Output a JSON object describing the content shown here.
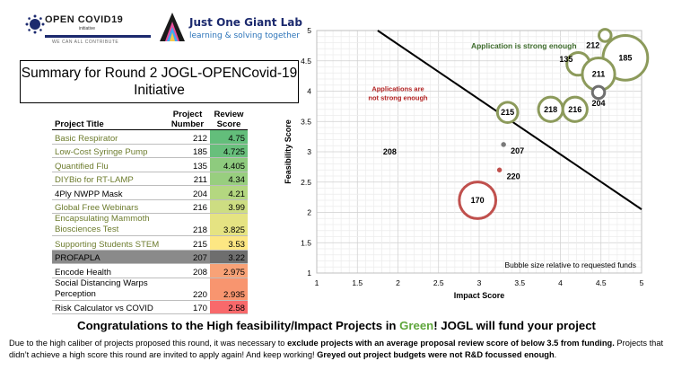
{
  "logos": {
    "opencovid": {
      "title": "OPEN COVID19",
      "sub": "initiative",
      "tagline": "WE CAN ALL CONTRIBUTE"
    },
    "jogl": {
      "name": "Just One Giant Lab",
      "tagline": "learning & solving together"
    }
  },
  "summary_title": "Summary for Round 2 JOGL-OPENCovid-19 Initiative",
  "table": {
    "headers": {
      "title": "Project Title",
      "number": "Project Number",
      "score": "Review Score"
    },
    "rows": [
      {
        "title": "Basic Respirator",
        "number": "212",
        "score": "4.75",
        "color": "#63be7b",
        "title_color": "green"
      },
      {
        "title": "Low-Cost Syringe Pump",
        "number": "185",
        "score": "4.725",
        "color": "#68bf7c",
        "title_color": "green"
      },
      {
        "title": "Quantified Flu",
        "number": "135",
        "score": "4.405",
        "color": "#8ecb7e",
        "title_color": "green"
      },
      {
        "title": "DIYBio for RT-LAMP",
        "number": "211",
        "score": "4.34",
        "color": "#98ce7f",
        "title_color": "green"
      },
      {
        "title": "4Ply NWPP Mask",
        "number": "204",
        "score": "4.21",
        "color": "#b4d780",
        "title_color": "black"
      },
      {
        "title": "Global Free Webinars",
        "number": "216",
        "score": "3.99",
        "color": "#cddd82",
        "title_color": "green"
      },
      {
        "title": "Encapsulating Mammoth Biosciences Test",
        "number": "218",
        "score": "3.825",
        "color": "#e5e382",
        "title_color": "green"
      },
      {
        "title": "Supporting Students STEM",
        "number": "215",
        "score": "3.53",
        "color": "#fde783",
        "title_color": "green"
      },
      {
        "title": "PROFAPLA",
        "number": "207",
        "score": "3.22",
        "color": "#6e6e6e",
        "title_color": "grey"
      },
      {
        "title": "Encode Health",
        "number": "208",
        "score": "2.975",
        "color": "#f8a277",
        "title_color": "black"
      },
      {
        "title": "Social Distancing Warps Perception",
        "number": "220",
        "score": "2.935",
        "color": "#f8956f",
        "title_color": "black"
      },
      {
        "title": "Risk Calculator vs COVID",
        "number": "170",
        "score": "2.58",
        "color": "#f8696b",
        "title_color": "black"
      }
    ]
  },
  "chart_data": {
    "type": "scatter",
    "xlabel": "Impact Score",
    "ylabel": "Feasibility Score",
    "xlim": [
      1,
      5
    ],
    "ylim": [
      1,
      5
    ],
    "xticks": [
      "1",
      "1.5",
      "2",
      "2.5",
      "3",
      "3.5",
      "4",
      "4.5",
      "5"
    ],
    "yticks": [
      "1",
      "1.5",
      "2",
      "2.5",
      "3",
      "3.5",
      "4",
      "4.5",
      "5"
    ],
    "grid": true,
    "threshold_line": [
      [
        1.75,
        5
      ],
      [
        5,
        2.05
      ]
    ],
    "bubbles": [
      {
        "label": "212",
        "x": 4.55,
        "y": 4.92,
        "size": 0.15,
        "color": "#8c9a5b"
      },
      {
        "label": "185",
        "x": 4.8,
        "y": 4.55,
        "size": 0.55,
        "color": "#8c9a5b"
      },
      {
        "label": "135",
        "x": 4.22,
        "y": 4.45,
        "size": 0.28,
        "color": "#8c9a5b"
      },
      {
        "label": "211",
        "x": 4.47,
        "y": 4.28,
        "size": 0.4,
        "color": "#8c9a5b"
      },
      {
        "label": "204",
        "x": 4.47,
        "y": 3.98,
        "size": 0.15,
        "color": "#6f6f6f"
      },
      {
        "label": "218",
        "x": 3.88,
        "y": 3.7,
        "size": 0.3,
        "color": "#8c9a5b"
      },
      {
        "label": "216",
        "x": 4.18,
        "y": 3.7,
        "size": 0.3,
        "color": "#8c9a5b"
      },
      {
        "label": "215",
        "x": 3.35,
        "y": 3.65,
        "size": 0.25,
        "color": "#8c9a5b"
      },
      {
        "label": "207",
        "x": 3.3,
        "y": 3.12,
        "size": 0.05,
        "color": "#7a7a7a"
      },
      {
        "label": "220",
        "x": 3.25,
        "y": 2.7,
        "size": 0.04,
        "color": "#c0504d"
      },
      {
        "label": "208",
        "x": 1.9,
        "y": 3.0,
        "size": 0,
        "color": "#000000"
      },
      {
        "label": "170",
        "x": 2.98,
        "y": 2.2,
        "size": 0.45,
        "color": "#c0504d"
      }
    ],
    "annotations": {
      "strong": "Application is strong enough",
      "not_strong_1": "Applications are",
      "not_strong_2": "not strong enough",
      "bubble_note": "Bubble size relative to requested funds"
    }
  },
  "footer": {
    "headline_a": "Congratulations to the High feasibility/Impact Projects in ",
    "headline_green": "Green",
    "headline_b": "! JOGL will fund your project",
    "body_1": "Due to the high caliber of projects proposed this round, it was necessary to ",
    "body_bold_1": "exclude projects with an average proposal review score of below 3.5 from funding.",
    "body_2": " Projects that didn’t achieve a high score this round are invited to apply again! And keep working! ",
    "body_bold_2": "Greyed out project budgets were not R&D focussed enough",
    "body_3": "."
  }
}
